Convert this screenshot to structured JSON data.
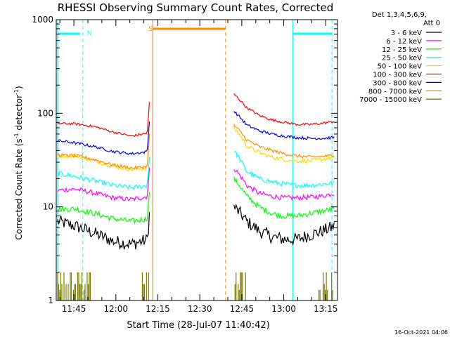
{
  "chart_data": {
    "type": "line",
    "title": "RHESSI Observing Summary Count Rates, Corrected",
    "xlabel": "Start Time (28-Jul-07 11:40:42)",
    "ylabel_main": "Corrected Count Rate (s",
    "ylabel_sup1": "-1",
    "ylabel_mid": " detector",
    "ylabel_sup2": "-1",
    "ylabel_end": ")",
    "yscale": "log",
    "ylim": [
      1,
      1000
    ],
    "xlim_minutes": [
      -2.0,
      98.5
    ],
    "x_ticks": [
      {
        "m": 4.3,
        "label": "11:45"
      },
      {
        "m": 19.3,
        "label": "12:00"
      },
      {
        "m": 34.3,
        "label": "12:15"
      },
      {
        "m": 49.3,
        "label": "12:30"
      },
      {
        "m": 64.3,
        "label": "12:45"
      },
      {
        "m": 79.3,
        "label": "13:00"
      },
      {
        "m": 94.3,
        "label": "13:15"
      }
    ],
    "y_ticks": [
      {
        "v": 1,
        "label": "1"
      },
      {
        "v": 10,
        "label": "10"
      },
      {
        "v": 100,
        "label": "100"
      },
      {
        "v": 1000,
        "label": "1000"
      }
    ],
    "legend_header": [
      "Det 1,3,4,5,6,9,",
      "Att 0"
    ],
    "series": [
      {
        "name": "3 - 6 keV",
        "color": "#000000",
        "pre": [
          7.0,
          6.2,
          5.2,
          4.3,
          4.0,
          4.5
        ],
        "post": [
          10.0,
          7.0,
          5.5,
          4.8,
          4.5,
          4.5,
          5.0,
          5.5,
          6.2
        ],
        "noise": 0.16
      },
      {
        "name": "6 - 12 keV",
        "color": "#ff00ff",
        "pre": [
          15.0,
          15.5,
          14.0,
          12.5,
          12.0,
          13.0
        ],
        "post": [
          26.0,
          17.0,
          14.0,
          13.0,
          12.5,
          12.5,
          12.7,
          13.0,
          14.0
        ],
        "noise": 0.06
      },
      {
        "name": "12 - 25 keV",
        "color": "#00ff00",
        "pre": [
          9.5,
          9.5,
          8.5,
          7.5,
          7.0,
          7.5
        ],
        "post": [
          20.0,
          13.0,
          10.0,
          8.5,
          8.0,
          8.0,
          8.5,
          9.0,
          9.5
        ],
        "noise": 0.07
      },
      {
        "name": "25 - 50 keV",
        "color": "#00ffff",
        "pre": [
          23.0,
          21.0,
          19.0,
          17.0,
          16.0,
          17.0
        ],
        "post": [
          40.0,
          24.0,
          20.0,
          18.5,
          17.5,
          17.0,
          17.0,
          17.5,
          18.0
        ],
        "noise": 0.06
      },
      {
        "name": "50 - 100 keV",
        "color": "#ffd700",
        "pre": [
          35.0,
          35.0,
          31.0,
          27.0,
          25.0,
          26.0
        ],
        "post": [
          70.0,
          45.0,
          38.0,
          34.0,
          32.0,
          31.0,
          31.0,
          32.0,
          34.0
        ],
        "noise": 0.05
      },
      {
        "name": "100 - 300 keV",
        "color": "#ff0000",
        "pre": [
          78.0,
          77.0,
          72.0,
          63.0,
          57.0,
          62.0
        ],
        "post": [
          160.0,
          115.0,
          95.0,
          85.0,
          80.0,
          76.0,
          76.0,
          78.0,
          82.0
        ],
        "noise": 0.03
      },
      {
        "name": "300 - 800 keV",
        "color": "#0000ff",
        "pre": [
          51.0,
          48.0,
          44.0,
          39.0,
          37.0,
          39.0
        ],
        "post": [
          105.0,
          75.0,
          65.0,
          60.0,
          57.0,
          55.0,
          54.0,
          54.0,
          55.0
        ],
        "noise": 0.035
      },
      {
        "name": "800 - 7000 keV",
        "color": "#ff8c00",
        "pre": [
          36.0,
          35.0,
          32.0,
          28.0,
          26.0,
          27.0
        ],
        "post": [
          75.0,
          52.0,
          44.0,
          40.0,
          37.0,
          35.0,
          34.0,
          34.5,
          35.5
        ],
        "noise": 0.04
      },
      {
        "name": "7000 - 15000 keV",
        "color": "#808000",
        "pre": [],
        "post": [],
        "noise": 0
      }
    ],
    "markers": [
      {
        "label": "N",
        "color": "#00ffff"
      },
      {
        "label": "S",
        "color": "#ff8c00"
      }
    ],
    "timestamp": "16-Oct-2021 04:06"
  }
}
